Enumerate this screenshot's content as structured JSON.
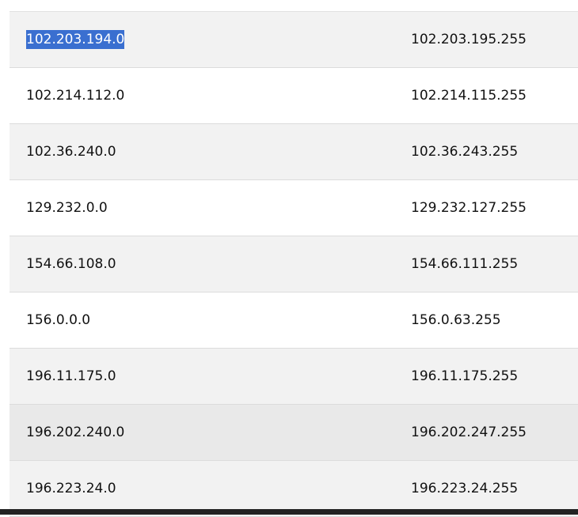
{
  "table": {
    "rows": [
      [
        "102.203.194.0",
        "102.203.195.255"
      ],
      [
        "102.214.112.0",
        "102.214.115.255"
      ],
      [
        "102.36.240.0",
        "102.36.243.255"
      ],
      [
        "129.232.0.0",
        "129.232.127.255"
      ],
      [
        "154.66.108.0",
        "154.66.111.255"
      ],
      [
        "156.0.0.0",
        "156.0.63.255"
      ],
      [
        "196.11.175.0",
        "196.11.175.255"
      ],
      [
        "196.202.240.0",
        "196.202.247.255"
      ],
      [
        "196.223.24.0",
        "196.223.24.255"
      ]
    ]
  }
}
